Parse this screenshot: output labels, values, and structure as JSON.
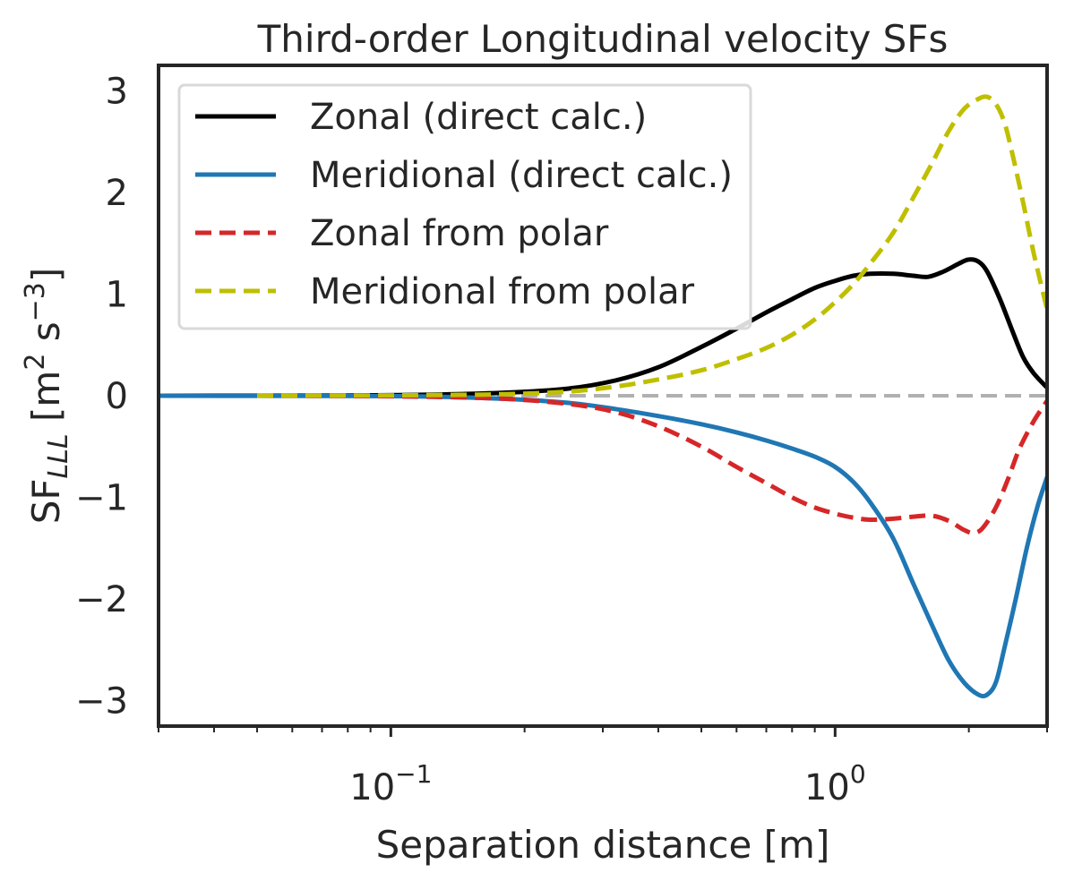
{
  "chart_data": {
    "type": "line",
    "title": "Third-order Longitudinal velocity SFs",
    "xlabel": "Separation distance [m]",
    "ylabel": "SF_LLL [m^2 s^-3]",
    "ylabel_parts": {
      "prefix": "SF",
      "sub": "LLL",
      "unit_open": " [m",
      "sup1": "2",
      "unit_mid": " s",
      "sup2": "−3",
      "unit_close": "]"
    },
    "x_scale": "log",
    "xlim": [
      0.03,
      3.0
    ],
    "ylim": [
      -3.25,
      3.25
    ],
    "x_ticks": [
      {
        "value": 0.1,
        "base": "10",
        "exp": "−1"
      },
      {
        "value": 1.0,
        "base": "10",
        "exp": "0"
      }
    ],
    "y_ticks": [
      {
        "value": -3,
        "label": "−3"
      },
      {
        "value": -2,
        "label": "−2"
      },
      {
        "value": -1,
        "label": "−1"
      },
      {
        "value": 0,
        "label": "0"
      },
      {
        "value": 1,
        "label": "1"
      },
      {
        "value": 2,
        "label": "2"
      },
      {
        "value": 3,
        "label": "3"
      }
    ],
    "grid": false,
    "legend_position": "upper left",
    "reference_line": {
      "y": 0,
      "color": "#b0b0b0",
      "style": "dashed"
    },
    "series": [
      {
        "name": "Zonal (direct calc.)",
        "color": "#000000",
        "style": "solid",
        "points": [
          [
            0.03,
            0
          ],
          [
            0.05,
            0.001
          ],
          [
            0.08,
            0.003
          ],
          [
            0.12,
            0.01
          ],
          [
            0.18,
            0.03
          ],
          [
            0.25,
            0.07
          ],
          [
            0.32,
            0.15
          ],
          [
            0.4,
            0.28
          ],
          [
            0.5,
            0.48
          ],
          [
            0.6,
            0.66
          ],
          [
            0.7,
            0.82
          ],
          [
            0.8,
            0.95
          ],
          [
            0.9,
            1.06
          ],
          [
            1.0,
            1.13
          ],
          [
            1.1,
            1.18
          ],
          [
            1.2,
            1.2
          ],
          [
            1.35,
            1.2
          ],
          [
            1.5,
            1.18
          ],
          [
            1.62,
            1.17
          ],
          [
            1.75,
            1.22
          ],
          [
            1.9,
            1.3
          ],
          [
            2.0,
            1.34
          ],
          [
            2.1,
            1.32
          ],
          [
            2.2,
            1.22
          ],
          [
            2.35,
            0.95
          ],
          [
            2.5,
            0.65
          ],
          [
            2.65,
            0.38
          ],
          [
            2.8,
            0.22
          ],
          [
            3.0,
            0.08
          ]
        ]
      },
      {
        "name": "Meridional (direct calc.)",
        "color": "#1f77b4",
        "style": "solid",
        "points": [
          [
            0.03,
            0
          ],
          [
            0.05,
            -0.001
          ],
          [
            0.08,
            -0.002
          ],
          [
            0.12,
            -0.008
          ],
          [
            0.18,
            -0.03
          ],
          [
            0.25,
            -0.07
          ],
          [
            0.32,
            -0.13
          ],
          [
            0.4,
            -0.2
          ],
          [
            0.5,
            -0.28
          ],
          [
            0.6,
            -0.36
          ],
          [
            0.7,
            -0.44
          ],
          [
            0.8,
            -0.52
          ],
          [
            0.9,
            -0.6
          ],
          [
            1.0,
            -0.7
          ],
          [
            1.1,
            -0.85
          ],
          [
            1.2,
            -1.05
          ],
          [
            1.35,
            -1.4
          ],
          [
            1.5,
            -1.85
          ],
          [
            1.65,
            -2.25
          ],
          [
            1.8,
            -2.6
          ],
          [
            1.95,
            -2.82
          ],
          [
            2.1,
            -2.94
          ],
          [
            2.2,
            -2.94
          ],
          [
            2.3,
            -2.82
          ],
          [
            2.4,
            -2.5
          ],
          [
            2.55,
            -2.0
          ],
          [
            2.7,
            -1.5
          ],
          [
            2.85,
            -1.1
          ],
          [
            3.0,
            -0.8
          ]
        ]
      },
      {
        "name": "Zonal from polar",
        "color": "#d62728",
        "style": "dashed",
        "points": [
          [
            0.05,
            0
          ],
          [
            0.08,
            -0.003
          ],
          [
            0.12,
            -0.01
          ],
          [
            0.18,
            -0.03
          ],
          [
            0.25,
            -0.08
          ],
          [
            0.32,
            -0.16
          ],
          [
            0.4,
            -0.3
          ],
          [
            0.5,
            -0.5
          ],
          [
            0.6,
            -0.7
          ],
          [
            0.7,
            -0.86
          ],
          [
            0.8,
            -1.0
          ],
          [
            0.9,
            -1.1
          ],
          [
            1.0,
            -1.16
          ],
          [
            1.1,
            -1.2
          ],
          [
            1.2,
            -1.22
          ],
          [
            1.35,
            -1.21
          ],
          [
            1.5,
            -1.19
          ],
          [
            1.65,
            -1.18
          ],
          [
            1.8,
            -1.23
          ],
          [
            1.95,
            -1.32
          ],
          [
            2.05,
            -1.35
          ],
          [
            2.15,
            -1.3
          ],
          [
            2.3,
            -1.1
          ],
          [
            2.45,
            -0.82
          ],
          [
            2.6,
            -0.52
          ],
          [
            2.8,
            -0.25
          ],
          [
            3.0,
            -0.05
          ]
        ]
      },
      {
        "name": "Meridional from polar",
        "color": "#bfbf00",
        "style": "dashed",
        "points": [
          [
            0.05,
            0
          ],
          [
            0.08,
            0.002
          ],
          [
            0.12,
            0.006
          ],
          [
            0.18,
            0.015
          ],
          [
            0.25,
            0.04
          ],
          [
            0.32,
            0.09
          ],
          [
            0.4,
            0.16
          ],
          [
            0.5,
            0.25
          ],
          [
            0.6,
            0.36
          ],
          [
            0.7,
            0.47
          ],
          [
            0.8,
            0.6
          ],
          [
            0.9,
            0.75
          ],
          [
            1.0,
            0.92
          ],
          [
            1.1,
            1.1
          ],
          [
            1.2,
            1.3
          ],
          [
            1.35,
            1.6
          ],
          [
            1.5,
            1.95
          ],
          [
            1.65,
            2.28
          ],
          [
            1.8,
            2.6
          ],
          [
            1.95,
            2.82
          ],
          [
            2.1,
            2.92
          ],
          [
            2.2,
            2.94
          ],
          [
            2.3,
            2.87
          ],
          [
            2.4,
            2.7
          ],
          [
            2.5,
            2.4
          ],
          [
            2.65,
            1.9
          ],
          [
            2.8,
            1.4
          ],
          [
            3.0,
            0.85
          ]
        ]
      }
    ]
  }
}
